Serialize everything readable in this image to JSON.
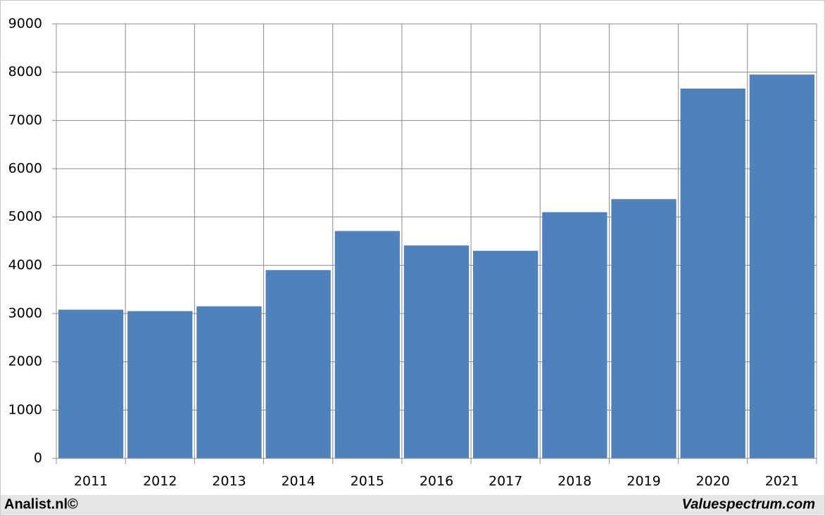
{
  "chart_data": {
    "type": "bar",
    "categories": [
      "2011",
      "2012",
      "2013",
      "2014",
      "2015",
      "2016",
      "2017",
      "2018",
      "2019",
      "2020",
      "2021"
    ],
    "values": [
      3080,
      3050,
      3150,
      3900,
      4710,
      4410,
      4300,
      5100,
      5370,
      7660,
      7950
    ],
    "color": "#4f81bd",
    "ylim": [
      0,
      9000
    ],
    "yticks": [
      0,
      1000,
      2000,
      3000,
      4000,
      5000,
      6000,
      7000,
      8000,
      9000
    ],
    "grid": true
  },
  "footer": {
    "left": "Analist.nl©",
    "right": "Valuespectrum.com"
  }
}
